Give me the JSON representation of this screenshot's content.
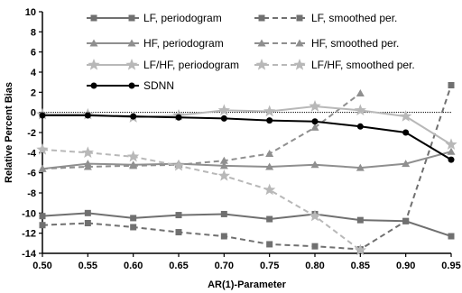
{
  "chart_data": {
    "type": "line",
    "xlabel": "AR(1)-Parameter",
    "ylabel": "Relative Percent Bias",
    "xlim": [
      0.5,
      0.95
    ],
    "ylim": [
      -14,
      10
    ],
    "x_ticks": [
      "0.50",
      "0.55",
      "0.60",
      "0.65",
      "0.70",
      "0.75",
      "0.80",
      "0.85",
      "0.90",
      "0.95"
    ],
    "y_ticks": [
      "10",
      "8",
      "6",
      "4",
      "2",
      "0",
      "-2",
      "-4",
      "-6",
      "-8",
      "-10",
      "-12",
      "-14"
    ],
    "reference_line": 0,
    "legend_position": "top",
    "x": [
      0.5,
      0.55,
      0.6,
      0.65,
      0.7,
      0.75,
      0.8,
      0.85,
      0.9,
      0.95
    ],
    "series": [
      {
        "name": "LF, periodogram",
        "color": "#707070",
        "dash": "solid",
        "marker": "square",
        "x": [
          0.5,
          0.55,
          0.6,
          0.65,
          0.7,
          0.75,
          0.8,
          0.85,
          0.9,
          0.95
        ],
        "y": [
          -10.3,
          -10.0,
          -10.5,
          -10.2,
          -10.1,
          -10.6,
          -10.1,
          -10.7,
          -10.8,
          -12.3
        ]
      },
      {
        "name": "LF, smoothed per.",
        "color": "#707070",
        "dash": "dashed",
        "marker": "square",
        "x": [
          0.5,
          0.55,
          0.6,
          0.65,
          0.7,
          0.75,
          0.8,
          0.85,
          0.9,
          0.95
        ],
        "y": [
          -11.2,
          -11.0,
          -11.4,
          -11.9,
          -12.3,
          -13.1,
          -13.3,
          -13.6,
          -10.8,
          2.7
        ]
      },
      {
        "name": "HF, periodogram",
        "color": "#8f8f8f",
        "dash": "solid",
        "marker": "triangle",
        "x": [
          0.5,
          0.55,
          0.6,
          0.65,
          0.7,
          0.75,
          0.8,
          0.85,
          0.9,
          0.95
        ],
        "y": [
          -5.6,
          -5.1,
          -5.2,
          -5.1,
          -5.3,
          -5.4,
          -5.2,
          -5.5,
          -5.1,
          -3.9
        ]
      },
      {
        "name": "HF, smoothed per.",
        "color": "#8f8f8f",
        "dash": "dashed",
        "marker": "triangle",
        "x": [
          0.5,
          0.55,
          0.6,
          0.65,
          0.7,
          0.75,
          0.8,
          0.85
        ],
        "y": [
          -5.6,
          -5.4,
          -5.3,
          -5.2,
          -4.8,
          -4.1,
          -1.5,
          1.9
        ]
      },
      {
        "name": "LF/HF, periodogram",
        "color": "#b8b8b8",
        "dash": "solid",
        "marker": "star",
        "x": [
          0.5,
          0.55,
          0.6,
          0.65,
          0.7,
          0.75,
          0.8,
          0.85,
          0.9,
          0.95
        ],
        "y": [
          -0.2,
          -0.2,
          -0.5,
          -0.3,
          0.2,
          0.1,
          0.6,
          0.2,
          -0.4,
          -3.2
        ]
      },
      {
        "name": "LF/HF, smoothed per.",
        "color": "#b8b8b8",
        "dash": "dashed",
        "marker": "star",
        "x": [
          0.5,
          0.55,
          0.6,
          0.65,
          0.7,
          0.75,
          0.8,
          0.85
        ],
        "y": [
          -3.7,
          -4.0,
          -4.4,
          -5.3,
          -6.3,
          -7.7,
          -10.3,
          -13.7
        ]
      },
      {
        "name": "SDNN",
        "color": "#000000",
        "dash": "solid",
        "marker": "circle",
        "x": [
          0.5,
          0.55,
          0.6,
          0.65,
          0.7,
          0.75,
          0.8,
          0.85,
          0.9,
          0.95
        ],
        "y": [
          -0.3,
          -0.3,
          -0.4,
          -0.5,
          -0.6,
          -0.8,
          -0.9,
          -1.4,
          -2.0,
          -4.7
        ]
      }
    ]
  }
}
